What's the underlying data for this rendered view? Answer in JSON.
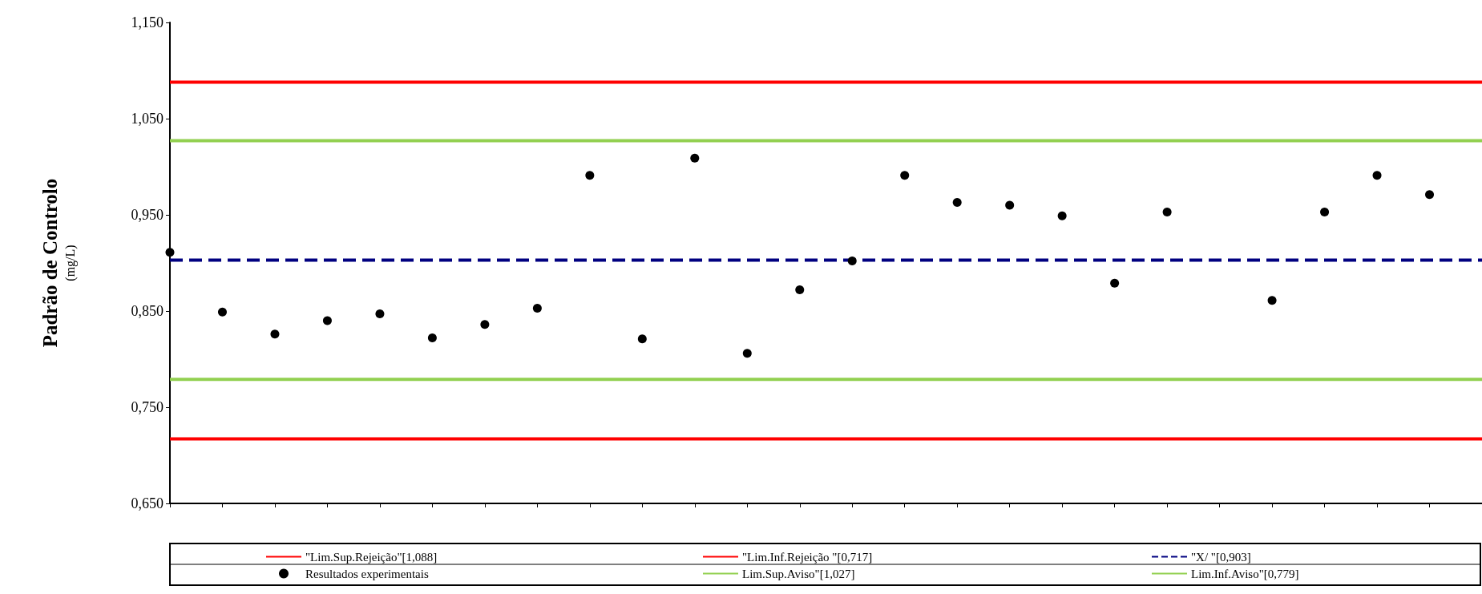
{
  "chart_data": {
    "type": "scatter",
    "ylabel": "Padrão de Controlo\n(mg/L)",
    "categories": [
      null,
      null,
      null,
      null,
      null,
      null,
      null,
      null,
      null,
      null,
      null,
      null,
      null,
      null,
      null,
      null,
      null,
      null,
      null,
      null,
      null,
      null,
      null,
      null,
      null,
      null
    ],
    "ylim": [
      0.65,
      1.15
    ],
    "yticks": [
      {
        "value": 0.65,
        "label": "0,650"
      },
      {
        "value": 0.75,
        "label": "0,750"
      },
      {
        "value": 0.85,
        "label": "0,850"
      },
      {
        "value": 0.95,
        "label": "0,950"
      },
      {
        "value": 1.05,
        "label": "1,050"
      },
      {
        "value": 1.15,
        "label": "1,150"
      }
    ],
    "tick_labels": "y",
    "grid": false,
    "legend": "bottom",
    "series": [
      {
        "name": "\"Lim.Sup.Rejeição\"[1,088]",
        "type": "line",
        "color": "#ff0000",
        "line_style": "solid",
        "marker": "none",
        "values": [
          1.088,
          1.088,
          1.088,
          1.088,
          1.088,
          1.088,
          1.088,
          1.088,
          1.088,
          1.088,
          1.088,
          1.088,
          1.088,
          1.088,
          1.088,
          1.088,
          1.088,
          1.088,
          1.088,
          1.088,
          1.088,
          1.088,
          1.088,
          1.088,
          1.088,
          1.088
        ]
      },
      {
        "name": "Resultados experimentais",
        "color": "#000000",
        "marker": "circle",
        "values": [
          0.911,
          0.849,
          0.826,
          0.84,
          0.847,
          0.822,
          0.836,
          0.853,
          0.991,
          0.821,
          1.009,
          0.806,
          0.872,
          0.902,
          0.991,
          0.963,
          0.96,
          0.949,
          0.879,
          0.953,
          null,
          0.861,
          0.953,
          0.991,
          0.971,
          null
        ]
      },
      {
        "name": "\"Lim.Inf.Rejeição \"[0,717]",
        "type": "line",
        "color": "#ff0000",
        "line_style": "solid",
        "marker": "none",
        "values": [
          0.717,
          0.717,
          0.717,
          0.717,
          0.717,
          0.717,
          0.717,
          0.717,
          0.717,
          0.717,
          0.717,
          0.717,
          0.717,
          0.717,
          0.717,
          0.717,
          0.717,
          0.717,
          0.717,
          0.717,
          0.717,
          0.717,
          0.717,
          0.717,
          0.717,
          0.717
        ]
      },
      {
        "name": "Lim.Sup.Aviso\"[1,027]",
        "type": "line",
        "color": "#92d050",
        "line_style": "solid",
        "marker": "none",
        "values": [
          1.027,
          1.027,
          1.027,
          1.027,
          1.027,
          1.027,
          1.027,
          1.027,
          1.027,
          1.027,
          1.027,
          1.027,
          1.027,
          1.027,
          1.027,
          1.027,
          1.027,
          1.027,
          1.027,
          1.027,
          1.027,
          1.027,
          1.027,
          1.027,
          1.027,
          1.027
        ]
      },
      {
        "name": "\"X/ \"[0,903]",
        "type": "line",
        "color": "#000080",
        "line_style": "dashed",
        "marker": "none",
        "values": [
          0.903,
          0.903,
          0.903,
          0.903,
          0.903,
          0.903,
          0.903,
          0.903,
          0.903,
          0.903,
          0.903,
          0.903,
          0.903,
          0.903,
          0.903,
          0.903,
          0.903,
          0.903,
          0.903,
          0.903,
          0.903,
          0.903,
          0.903,
          0.903,
          0.903,
          0.903
        ]
      },
      {
        "name": "Lim.Inf.Aviso\"[0,779]",
        "type": "line",
        "color": "#92d050",
        "line_style": "solid",
        "marker": "none",
        "values": [
          0.779,
          0.779,
          0.779,
          0.779,
          0.779,
          0.779,
          0.779,
          0.779,
          0.779,
          0.779,
          0.779,
          0.779,
          0.779,
          0.779,
          0.779,
          0.779,
          0.779,
          0.779,
          0.779,
          0.779,
          0.779,
          0.779,
          0.779,
          0.779,
          0.779,
          0.779
        ]
      }
    ]
  }
}
